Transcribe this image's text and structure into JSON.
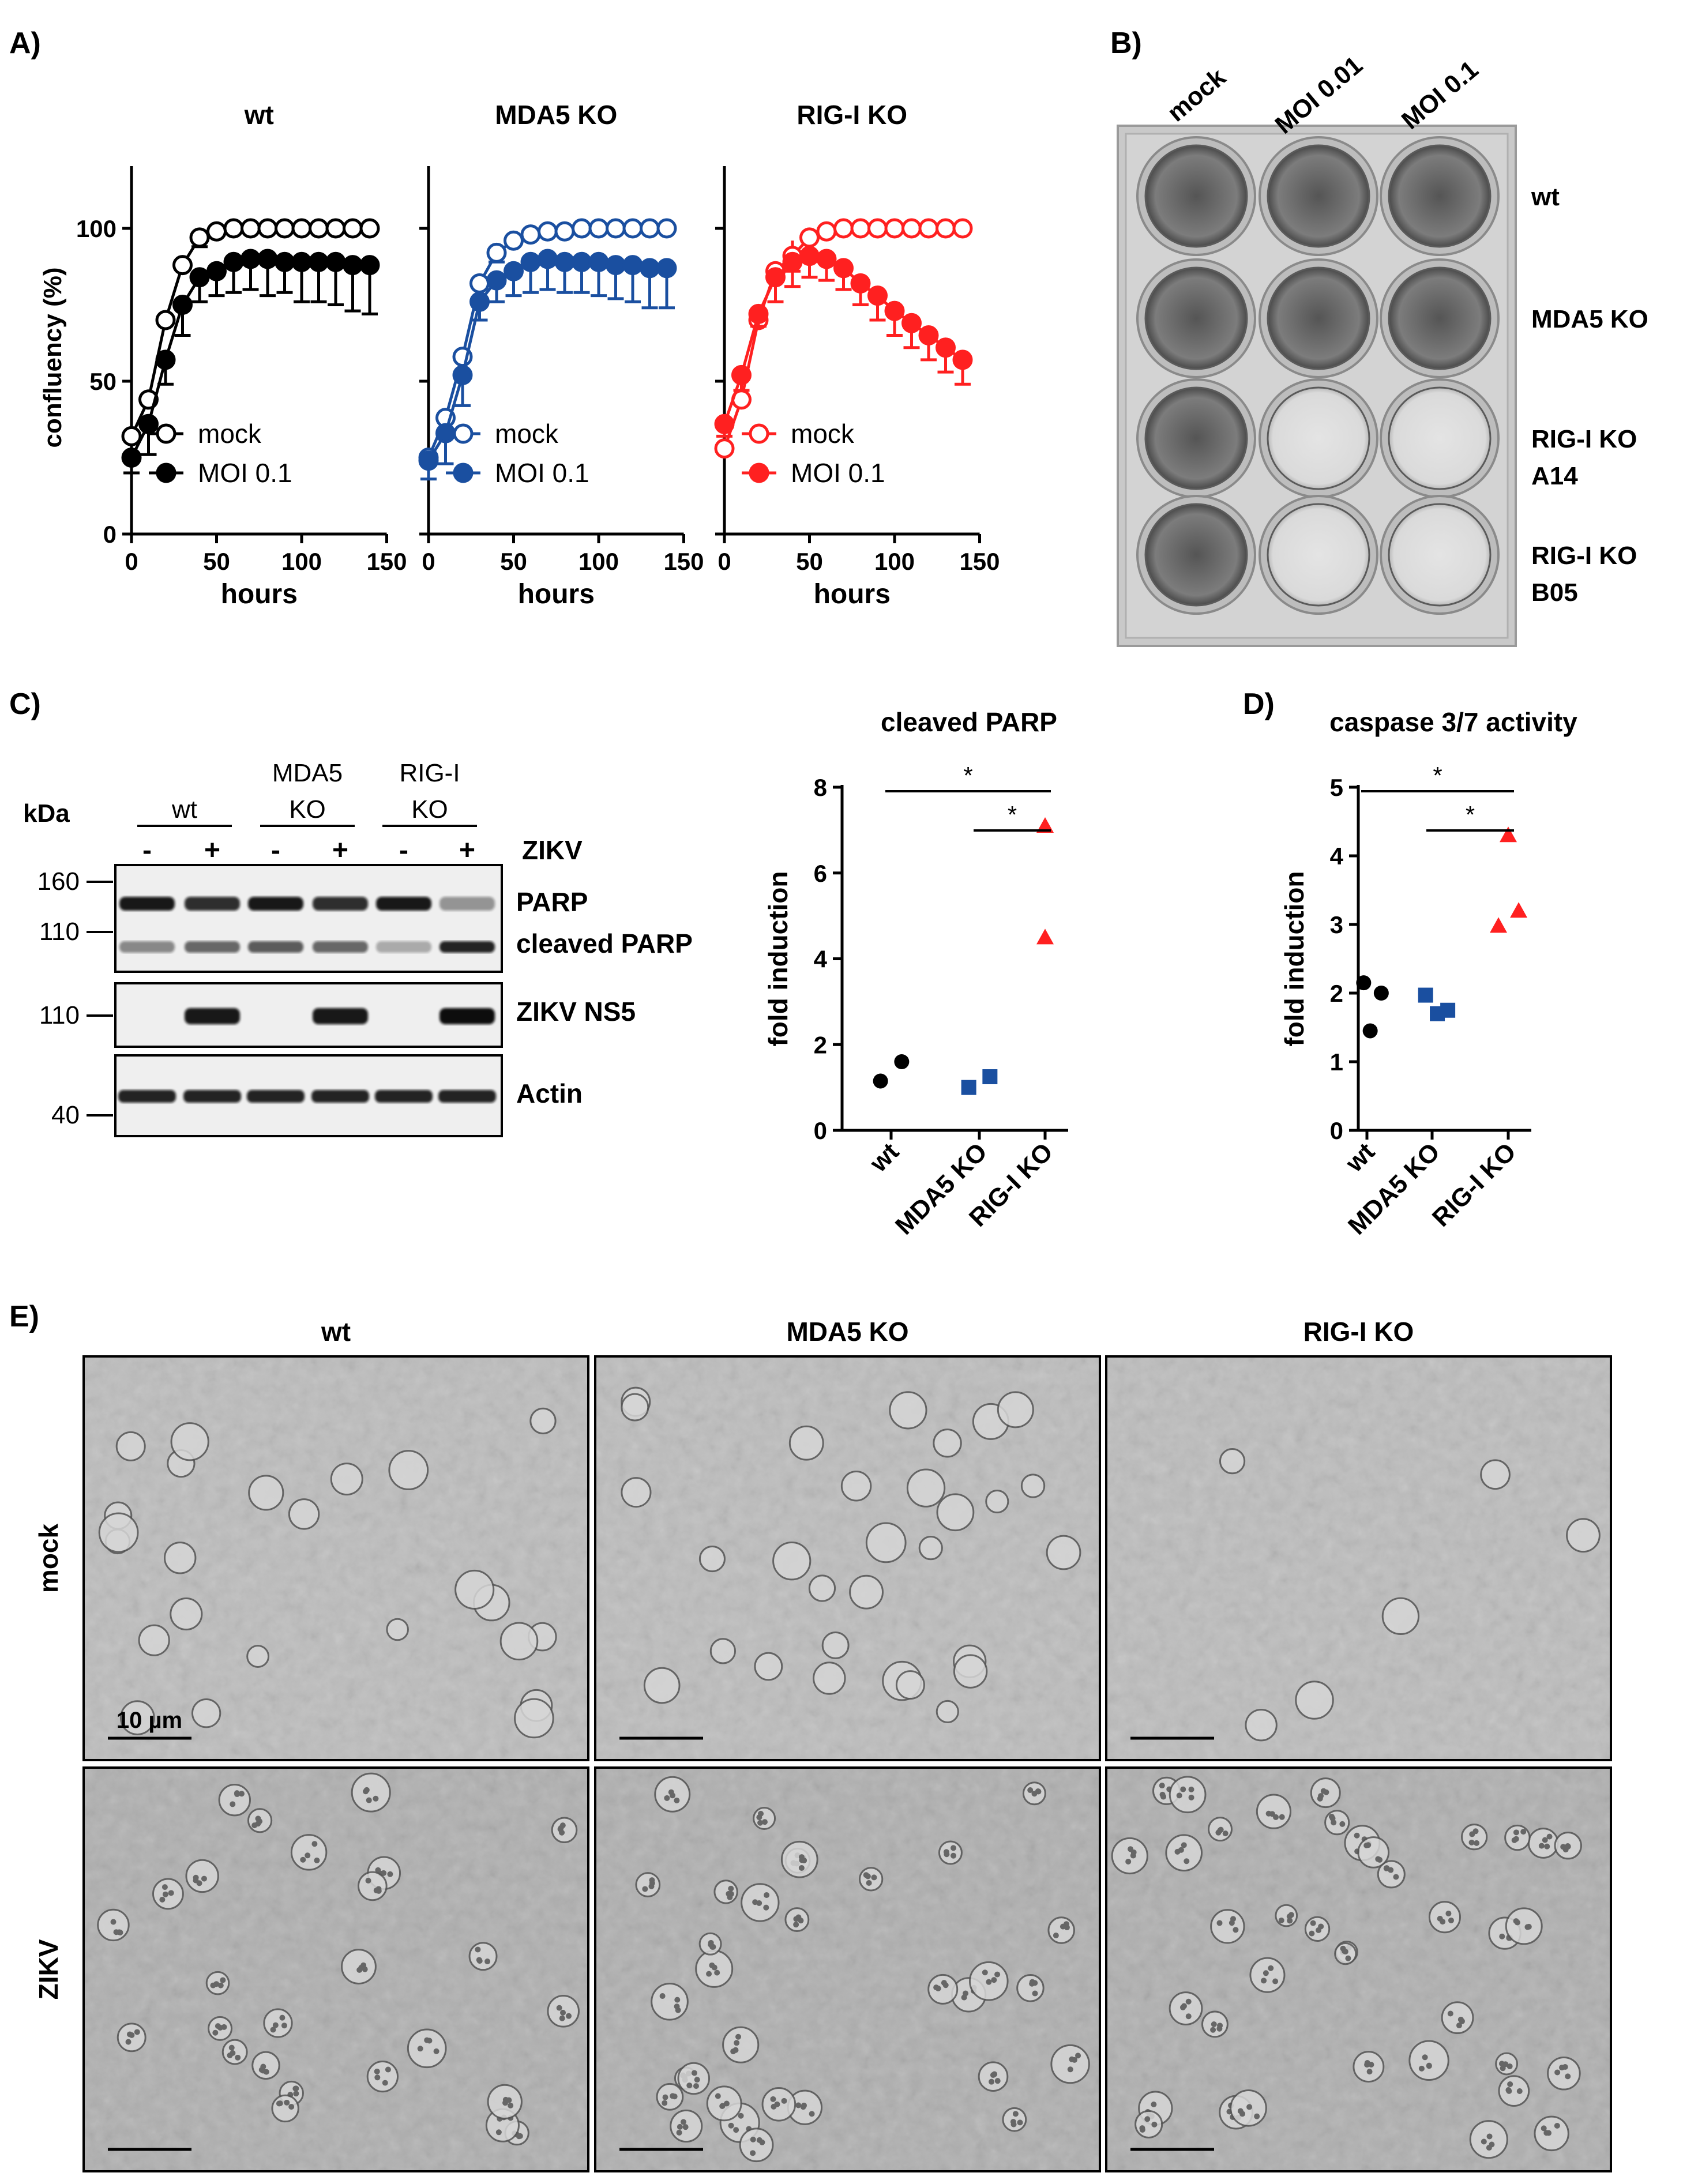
{
  "panels": {
    "A": {
      "label": "A)"
    },
    "B": {
      "label": "B)"
    },
    "C": {
      "label": "C)"
    },
    "D": {
      "label": "D)"
    },
    "E": {
      "label": "E)"
    }
  },
  "panel_a": {
    "ylabel": "confluency (%)",
    "xlabel": "hours",
    "legend_mock": "mock",
    "legend_moi": "MOI 0.1",
    "xticks": [
      "0",
      "50",
      "100",
      "150"
    ],
    "yticks": [
      "0",
      "50",
      "100"
    ],
    "subplots": [
      {
        "title": "wt",
        "color": "#000000"
      },
      {
        "title": "MDA5 KO",
        "color": "#1a4fa0"
      },
      {
        "title": "RIG-I KO",
        "color": "#ff2020"
      }
    ]
  },
  "panel_b": {
    "columns": [
      "mock",
      "MOI 0.01",
      "MOI 0.1"
    ],
    "rows": [
      {
        "line1": "wt",
        "line2": ""
      },
      {
        "line1": "MDA5 KO",
        "line2": ""
      },
      {
        "line1": "RIG-I KO",
        "line2": "A14"
      },
      {
        "line1": "RIG-I KO",
        "line2": "B05"
      }
    ],
    "well_cells": [
      [
        true,
        true,
        true
      ],
      [
        true,
        true,
        true
      ],
      [
        true,
        false,
        false
      ],
      [
        true,
        false,
        false
      ]
    ]
  },
  "panel_c": {
    "kda_label": "kDa",
    "groups": [
      {
        "line1": "wt",
        "line2": ""
      },
      {
        "line1": "MDA5",
        "line2": "KO"
      },
      {
        "line1": "RIG-I",
        "line2": "KO"
      }
    ],
    "lane_signs": [
      "-",
      "+",
      "-",
      "+",
      "-",
      "+"
    ],
    "zikv_label": "ZIKV",
    "markers": [
      "160",
      "110",
      "110",
      "40"
    ],
    "blot_labels": [
      "PARP",
      "cleaved PARP",
      "ZIKV NS5",
      "Actin"
    ]
  },
  "chart_data": [
    {
      "type": "line",
      "title": "wt",
      "xlabel": "hours",
      "ylabel": "confluency (%)",
      "xlim": [
        0,
        150
      ],
      "ylim": [
        0,
        120
      ],
      "series": [
        {
          "name": "mock",
          "marker": "open-circle",
          "color": "#000000",
          "x": [
            0,
            10,
            20,
            30,
            40,
            50,
            60,
            70,
            80,
            90,
            100,
            110,
            120,
            130,
            140
          ],
          "y": [
            32,
            44,
            70,
            88,
            97,
            99,
            100,
            100,
            100,
            100,
            100,
            100,
            100,
            100,
            100
          ],
          "err": [
            0,
            0,
            0,
            0,
            3,
            0,
            0,
            0,
            0,
            0,
            0,
            0,
            0,
            0,
            0
          ]
        },
        {
          "name": "MOI 0.1",
          "marker": "filled-circle",
          "color": "#000000",
          "x": [
            0,
            10,
            20,
            30,
            40,
            50,
            60,
            70,
            80,
            90,
            100,
            110,
            120,
            130,
            140
          ],
          "y": [
            25,
            36,
            57,
            75,
            84,
            86,
            89,
            90,
            90,
            89,
            89,
            89,
            89,
            88,
            88
          ],
          "err": [
            5,
            10,
            8,
            10,
            8,
            8,
            10,
            10,
            12,
            10,
            13,
            13,
            14,
            15,
            16
          ]
        }
      ]
    },
    {
      "type": "line",
      "title": "MDA5 KO",
      "xlabel": "hours",
      "xlim": [
        0,
        150
      ],
      "ylim": [
        0,
        120
      ],
      "series": [
        {
          "name": "mock",
          "marker": "open-circle",
          "color": "#1a4fa0",
          "x": [
            0,
            10,
            20,
            30,
            40,
            50,
            60,
            70,
            80,
            90,
            100,
            110,
            120,
            130,
            140
          ],
          "y": [
            25,
            38,
            58,
            82,
            92,
            96,
            98,
            99,
            99,
            100,
            100,
            100,
            100,
            100,
            100
          ],
          "err": [
            0,
            0,
            0,
            0,
            3,
            0,
            0,
            0,
            0,
            0,
            0,
            0,
            0,
            0,
            0
          ]
        },
        {
          "name": "MOI 0.1",
          "marker": "filled-circle",
          "color": "#1a4fa0",
          "x": [
            0,
            10,
            20,
            30,
            40,
            50,
            60,
            70,
            80,
            90,
            100,
            110,
            120,
            130,
            140
          ],
          "y": [
            24,
            33,
            52,
            76,
            83,
            86,
            89,
            90,
            89,
            89,
            89,
            88,
            88,
            87,
            87
          ],
          "err": [
            6,
            10,
            10,
            6,
            7,
            8,
            10,
            10,
            10,
            10,
            11,
            11,
            12,
            13,
            13
          ]
        }
      ]
    },
    {
      "type": "line",
      "title": "RIG-I KO",
      "xlabel": "hours",
      "xlim": [
        0,
        150
      ],
      "ylim": [
        0,
        120
      ],
      "series": [
        {
          "name": "mock",
          "marker": "open-circle",
          "color": "#ff2020",
          "x": [
            0,
            10,
            20,
            30,
            40,
            50,
            60,
            70,
            80,
            90,
            100,
            110,
            120,
            130,
            140
          ],
          "y": [
            28,
            44,
            70,
            86,
            91,
            97,
            99,
            100,
            100,
            100,
            100,
            100,
            100,
            100,
            100
          ],
          "err": [
            0,
            0,
            0,
            0,
            5,
            0,
            0,
            0,
            0,
            0,
            0,
            0,
            0,
            0,
            0
          ]
        },
        {
          "name": "MOI 0.1",
          "marker": "filled-circle",
          "color": "#ff2020",
          "x": [
            0,
            10,
            20,
            30,
            40,
            50,
            60,
            70,
            80,
            90,
            100,
            110,
            120,
            130,
            140
          ],
          "y": [
            36,
            52,
            72,
            84,
            89,
            91,
            90,
            87,
            82,
            78,
            73,
            69,
            65,
            61,
            57
          ],
          "err": [
            4,
            5,
            4,
            8,
            8,
            7,
            7,
            7,
            7,
            8,
            8,
            8,
            8,
            8,
            8
          ]
        }
      ]
    },
    {
      "type": "scatter",
      "title": "cleaved PARP",
      "ylabel": "fold induction",
      "categories": [
        "wt",
        "MDA5 KO",
        "RIG-I KO"
      ],
      "ylim": [
        0,
        8
      ],
      "yticks": [
        "0",
        "2",
        "4",
        "6",
        "8"
      ],
      "significance": [
        "*",
        "*"
      ],
      "series": [
        {
          "name": "wt",
          "marker": "circle",
          "color": "#000000",
          "cat": 0,
          "offsets": [
            -0.12,
            0.12
          ],
          "values": [
            1.15,
            1.6
          ]
        },
        {
          "name": "MDA5 KO",
          "marker": "square",
          "color": "#1a4fa0",
          "cat": 1,
          "offsets": [
            -0.12,
            0.12
          ],
          "values": [
            1.0,
            1.25
          ]
        },
        {
          "name": "RIG-I KO",
          "marker": "triangle",
          "color": "#ff2020",
          "cat": 2,
          "offsets": [
            0,
            0
          ],
          "values": [
            4.5,
            7.1
          ]
        }
      ]
    },
    {
      "type": "scatter",
      "title": "caspase 3/7 activity",
      "ylabel": "fold induction",
      "categories": [
        "wt",
        "MDA5 KO",
        "RIG-I KO"
      ],
      "ylim": [
        0,
        5
      ],
      "yticks": [
        "0",
        "1",
        "2",
        "3",
        "4",
        "5"
      ],
      "significance": [
        "*",
        "*"
      ],
      "series": [
        {
          "name": "wt",
          "marker": "circle",
          "color": "#000000",
          "cat": 0,
          "offsets": [
            -0.05,
            0.05,
            0.22
          ],
          "values": [
            2.15,
            1.45,
            2.0
          ]
        },
        {
          "name": "MDA5 KO",
          "marker": "square",
          "color": "#1a4fa0",
          "cat": 1,
          "offsets": [
            -0.1,
            0.08,
            0.24
          ],
          "values": [
            1.97,
            1.7,
            1.75
          ]
        },
        {
          "name": "RIG-I KO",
          "marker": "triangle",
          "color": "#ff2020",
          "cat": 2,
          "offsets": [
            -0.15,
            0.0,
            0.16
          ],
          "values": [
            2.98,
            4.3,
            3.2
          ]
        }
      ]
    }
  ],
  "panel_e": {
    "columns": [
      "wt",
      "MDA5 KO",
      "RIG-I KO"
    ],
    "rows": [
      "mock",
      "ZIKV"
    ],
    "scale_label": "10 µm",
    "cells": [
      [
        {
          "cells": 24,
          "seed": 3
        },
        {
          "cells": 30,
          "seed": 11
        },
        {
          "cells": 6,
          "seed": 19
        }
      ],
      [
        {
          "cells": 26,
          "seed": 27
        },
        {
          "cells": 32,
          "seed": 35
        },
        {
          "cells": 38,
          "seed": 43
        }
      ]
    ]
  }
}
